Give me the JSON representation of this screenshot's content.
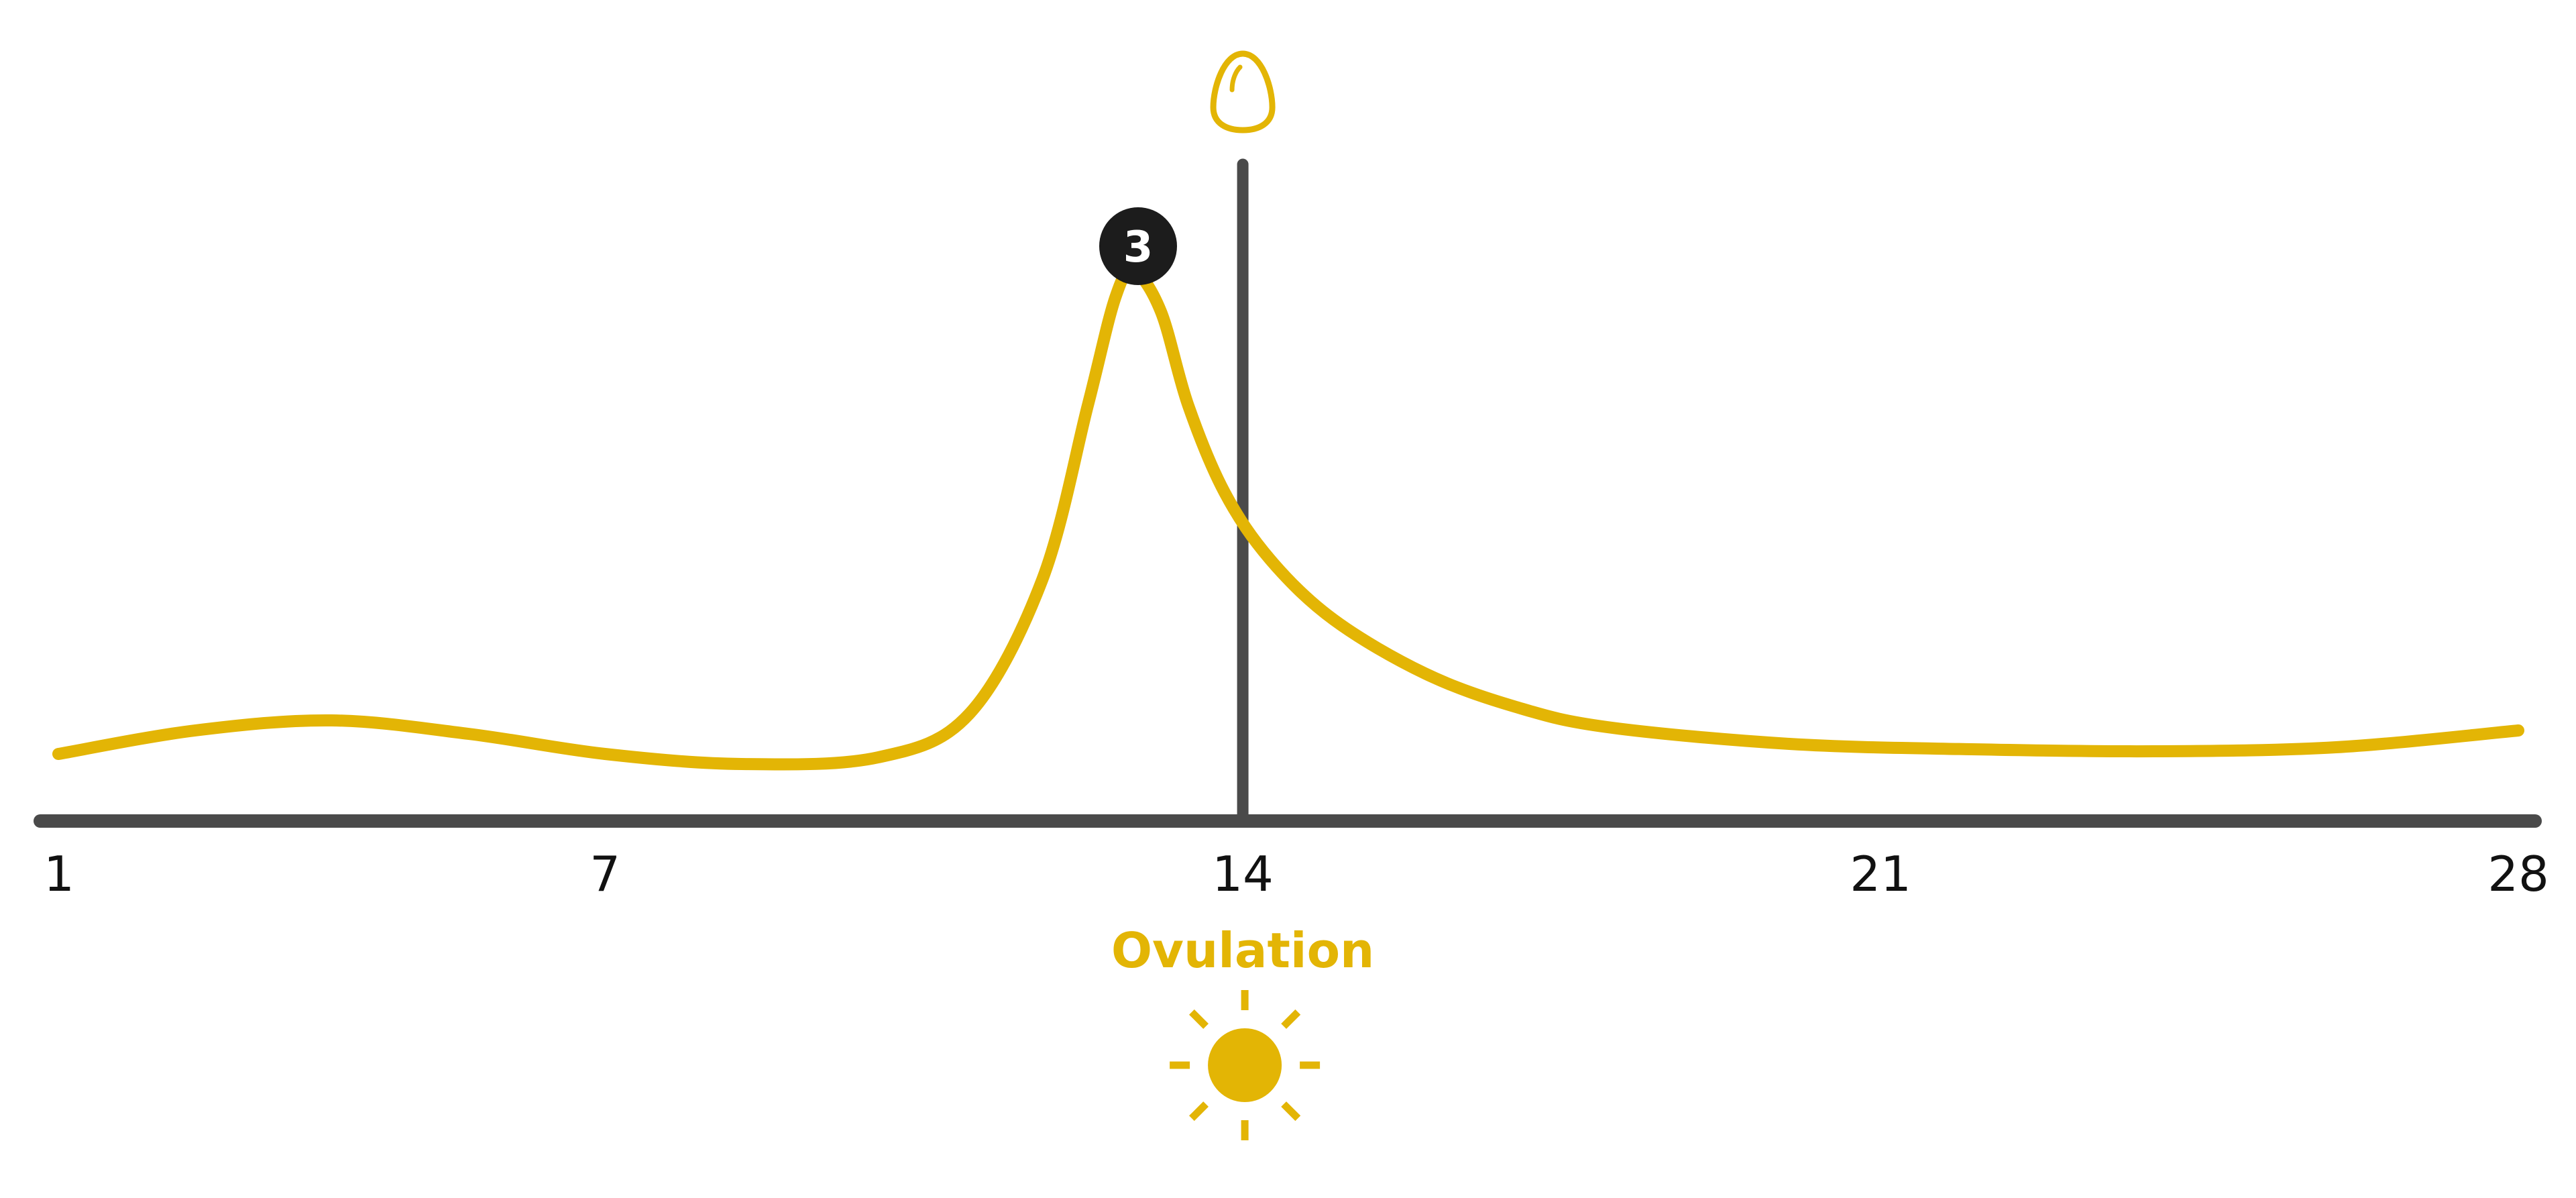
{
  "colors": {
    "curve": "#E3B505",
    "axis": "#4A4A4A",
    "badge": "#1C1C1C",
    "text": "#111111"
  },
  "icons": {
    "top": "egg-icon",
    "bottom": "sun-icon"
  },
  "badge": {
    "text": "3"
  },
  "ovulation": {
    "label": "Ovulation",
    "day": 14
  },
  "chart_data": {
    "type": "line",
    "title": "",
    "xlabel": "",
    "ylabel": "",
    "xlim": [
      1,
      28
    ],
    "ylim": [
      0,
      1
    ],
    "grid": false,
    "x_ticks": [
      "1",
      "7",
      "14",
      "21",
      "28"
    ],
    "x_tick_values": [
      1,
      7,
      14,
      21,
      28
    ],
    "series": [
      {
        "x": [
          1,
          2.5,
          4,
          5.5,
          7,
          8.5,
          10,
          11,
          11.8,
          12.3,
          12.6,
          12.8,
          13.1,
          13.4,
          13.8,
          14.3,
          15,
          16,
          17,
          18,
          20,
          22,
          24,
          26,
          28
        ],
        "y": [
          0.1,
          0.135,
          0.15,
          0.13,
          0.1,
          0.085,
          0.095,
          0.16,
          0.36,
          0.62,
          0.78,
          0.82,
          0.76,
          0.62,
          0.49,
          0.39,
          0.3,
          0.22,
          0.17,
          0.14,
          0.115,
          0.107,
          0.104,
          0.11,
          0.135
        ]
      }
    ]
  }
}
